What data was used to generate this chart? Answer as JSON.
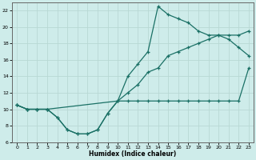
{
  "title": "",
  "xlabel": "Humidex (Indice chaleur)",
  "xlim": [
    -0.5,
    23.5
  ],
  "ylim": [
    6,
    23
  ],
  "yticks": [
    6,
    8,
    10,
    12,
    14,
    16,
    18,
    20,
    22
  ],
  "xticks": [
    0,
    1,
    2,
    3,
    4,
    5,
    6,
    7,
    8,
    9,
    10,
    11,
    12,
    13,
    14,
    15,
    16,
    17,
    18,
    19,
    20,
    21,
    22,
    23
  ],
  "background_color": "#ceecea",
  "grid_color": "#b8d8d4",
  "line_color": "#1a7065",
  "line1_x": [
    0,
    1,
    2,
    3,
    4,
    5,
    6,
    7,
    8,
    9,
    10,
    11,
    12,
    13,
    14,
    15,
    16,
    17,
    18,
    19,
    20,
    21,
    22,
    23
  ],
  "line1_y": [
    10.5,
    10,
    10,
    10,
    9,
    7.5,
    7,
    7,
    7.5,
    9.5,
    11,
    11,
    11,
    11,
    11,
    11,
    11,
    11,
    11,
    11,
    11,
    11,
    11,
    15
  ],
  "line2_x": [
    0,
    1,
    2,
    3,
    4,
    5,
    6,
    7,
    8,
    9,
    10,
    11,
    12,
    13,
    14,
    15,
    16,
    17,
    18,
    19,
    20,
    21,
    22,
    23
  ],
  "line2_y": [
    10.5,
    10,
    10,
    10,
    9,
    7.5,
    7,
    7,
    7.5,
    9.5,
    11,
    12,
    13,
    14.5,
    15,
    16.5,
    17,
    17.5,
    18,
    18.5,
    19,
    19,
    19,
    19.5
  ],
  "line3_x": [
    0,
    1,
    2,
    3,
    10,
    11,
    12,
    13,
    14,
    15,
    16,
    17,
    18,
    19,
    20,
    21,
    22,
    23
  ],
  "line3_y": [
    10.5,
    10,
    10,
    10,
    11,
    14,
    15.5,
    17,
    22.5,
    21.5,
    21,
    20.5,
    19.5,
    19,
    19,
    18.5,
    17.5,
    16.5
  ]
}
